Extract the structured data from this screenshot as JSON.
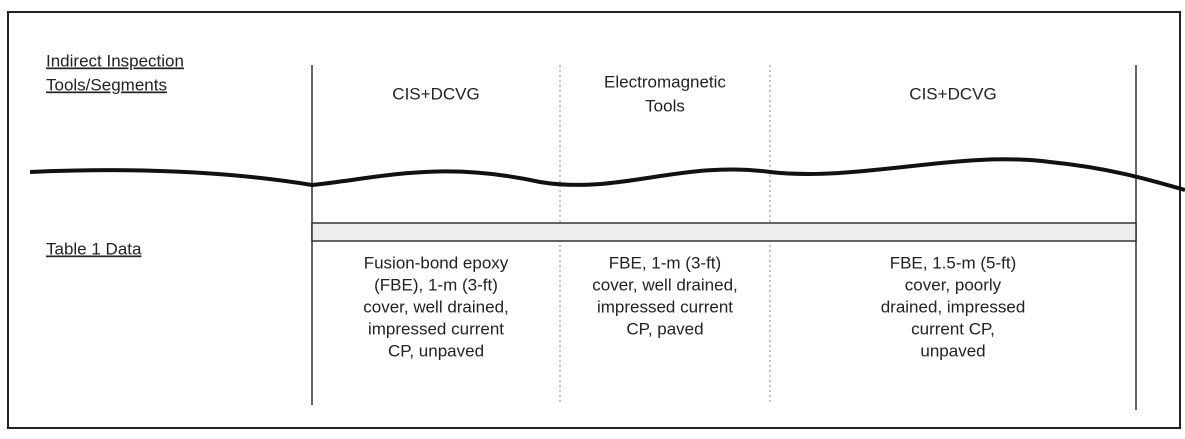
{
  "header": {
    "line1": "Indirect Inspection",
    "line2": "Tools/Segments"
  },
  "row_label": "Table 1 Data",
  "segments": [
    {
      "tool": [
        "CIS+DCVG"
      ],
      "data": [
        "Fusion-bond epoxy",
        "(FBE), 1-m (3-ft)",
        "cover, well drained,",
        "impressed current",
        "CP, unpaved"
      ]
    },
    {
      "tool": [
        "Electromagnetic",
        "Tools"
      ],
      "data": [
        "FBE, 1-m (3-ft)",
        "cover, well drained,",
        "impressed current",
        "CP, paved"
      ]
    },
    {
      "tool": [
        "CIS+DCVG"
      ],
      "data": [
        "FBE, 1.5-m (5-ft)",
        "cover, poorly",
        "drained, impressed",
        "current CP,",
        "unpaved"
      ]
    }
  ]
}
